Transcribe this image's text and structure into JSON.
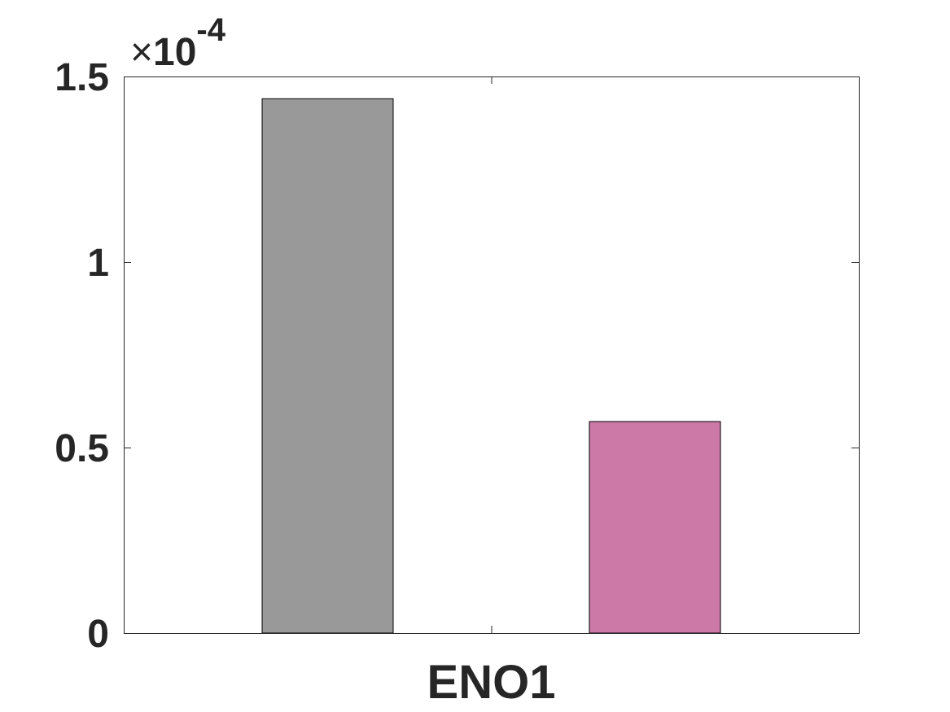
{
  "chart_data": {
    "type": "bar",
    "categories": [
      "ENO1"
    ],
    "series": [
      {
        "values": [
          0.000144
        ],
        "color": "#999999"
      },
      {
        "values": [
          5.7e-05
        ],
        "color": "#cc79a7"
      }
    ],
    "title": "",
    "xlabel": "",
    "ylabel": "",
    "ylim": [
      0,
      0.00015
    ],
    "yticks": [
      0,
      0.5,
      1,
      1.5
    ],
    "ytick_labels": [
      "0",
      "0.5",
      "1",
      "1.5"
    ],
    "y_multiplier": {
      "times": "×",
      "base": "10",
      "exponent": "-4"
    },
    "grid": false,
    "legend": "none",
    "box": true
  }
}
